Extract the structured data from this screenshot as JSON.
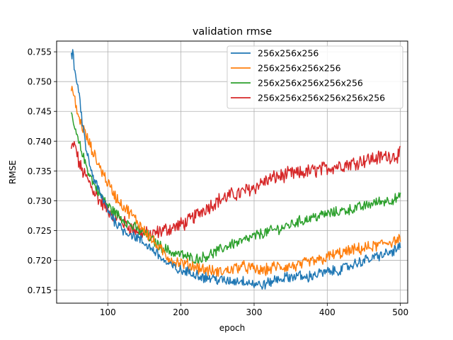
{
  "chart_data": {
    "type": "line",
    "title": "validation rmse",
    "xlabel": "epoch",
    "ylabel": "RMSE",
    "xlim": [
      30,
      510
    ],
    "ylim": [
      0.7128,
      0.7568
    ],
    "xticks": [
      100,
      200,
      300,
      400,
      500
    ],
    "yticks": [
      0.715,
      0.72,
      0.725,
      0.73,
      0.735,
      0.74,
      0.745,
      0.75,
      0.755
    ],
    "ytick_labels": [
      "0.715",
      "0.720",
      "0.725",
      "0.730",
      "0.735",
      "0.740",
      "0.745",
      "0.750",
      "0.755"
    ],
    "grid": true,
    "legend_position": "top-right",
    "noise": [
      0.0008,
      0.0009,
      0.0008,
      0.0011
    ],
    "series": [
      {
        "name": "256x256x256",
        "color": "#1f77b4",
        "x": [
          50,
          52,
          55,
          58,
          62,
          65,
          70,
          75,
          80,
          90,
          100,
          110,
          120,
          130,
          140,
          150,
          160,
          170,
          180,
          190,
          200,
          210,
          220,
          230,
          240,
          250,
          260,
          270,
          280,
          290,
          300,
          310,
          320,
          330,
          340,
          350,
          360,
          370,
          380,
          390,
          400,
          410,
          420,
          430,
          440,
          450,
          460,
          470,
          480,
          490,
          500
        ],
        "y": [
          0.7545,
          0.7545,
          0.752,
          0.749,
          0.747,
          0.743,
          0.739,
          0.736,
          0.734,
          0.731,
          0.7285,
          0.7265,
          0.7252,
          0.7245,
          0.7238,
          0.7228,
          0.722,
          0.7208,
          0.7195,
          0.7188,
          0.7182,
          0.718,
          0.7178,
          0.7172,
          0.717,
          0.7168,
          0.7165,
          0.7165,
          0.7166,
          0.7165,
          0.716,
          0.7158,
          0.7162,
          0.7168,
          0.717,
          0.7172,
          0.7175,
          0.717,
          0.7175,
          0.7178,
          0.718,
          0.7182,
          0.7185,
          0.719,
          0.7195,
          0.72,
          0.7202,
          0.7208,
          0.721,
          0.7215,
          0.7222
        ]
      },
      {
        "name": "256x256x256x256",
        "color": "#ff7f0e",
        "x": [
          50,
          53,
          57,
          60,
          65,
          70,
          75,
          80,
          90,
          100,
          110,
          120,
          130,
          140,
          150,
          160,
          170,
          180,
          190,
          200,
          210,
          220,
          230,
          240,
          250,
          260,
          270,
          280,
          290,
          300,
          310,
          320,
          330,
          340,
          350,
          360,
          370,
          380,
          390,
          400,
          410,
          420,
          430,
          440,
          450,
          460,
          470,
          480,
          490,
          500
        ],
        "y": [
          0.7495,
          0.7478,
          0.7455,
          0.744,
          0.7425,
          0.741,
          0.7395,
          0.738,
          0.7355,
          0.733,
          0.7308,
          0.7292,
          0.728,
          0.7265,
          0.7252,
          0.7235,
          0.722,
          0.7208,
          0.7198,
          0.7195,
          0.7192,
          0.719,
          0.7185,
          0.7182,
          0.718,
          0.7182,
          0.7185,
          0.719,
          0.7188,
          0.7185,
          0.7182,
          0.7185,
          0.719,
          0.7188,
          0.719,
          0.719,
          0.7195,
          0.7198,
          0.72,
          0.7205,
          0.721,
          0.7212,
          0.7215,
          0.7218,
          0.722,
          0.7222,
          0.7225,
          0.723,
          0.7232,
          0.7235
        ]
      },
      {
        "name": "256x256x256x256x256",
        "color": "#2ca02c",
        "x": [
          50,
          53,
          57,
          60,
          65,
          70,
          75,
          80,
          90,
          100,
          110,
          120,
          130,
          140,
          150,
          160,
          170,
          180,
          190,
          200,
          210,
          220,
          230,
          240,
          250,
          260,
          270,
          280,
          290,
          300,
          310,
          320,
          330,
          340,
          350,
          360,
          370,
          380,
          390,
          400,
          410,
          420,
          430,
          440,
          450,
          460,
          470,
          480,
          490,
          500
        ],
        "y": [
          0.7445,
          0.743,
          0.741,
          0.7398,
          0.738,
          0.736,
          0.7345,
          0.733,
          0.731,
          0.7292,
          0.728,
          0.727,
          0.726,
          0.7252,
          0.7245,
          0.7235,
          0.7225,
          0.7218,
          0.7212,
          0.721,
          0.7205,
          0.7202,
          0.7205,
          0.721,
          0.7215,
          0.7222,
          0.7228,
          0.723,
          0.7235,
          0.724,
          0.7245,
          0.7248,
          0.7252,
          0.7255,
          0.726,
          0.7265,
          0.7268,
          0.7272,
          0.7275,
          0.7278,
          0.728,
          0.7283,
          0.7285,
          0.7288,
          0.729,
          0.7295,
          0.7298,
          0.73,
          0.7302,
          0.7305
        ]
      },
      {
        "name": "256x256x256x256x256x256",
        "color": "#d62728",
        "x": [
          50,
          53,
          57,
          60,
          65,
          70,
          75,
          80,
          90,
          100,
          110,
          120,
          130,
          140,
          150,
          160,
          170,
          180,
          190,
          200,
          210,
          220,
          230,
          240,
          250,
          260,
          270,
          280,
          290,
          300,
          310,
          320,
          330,
          340,
          350,
          360,
          370,
          380,
          390,
          400,
          410,
          420,
          430,
          440,
          450,
          460,
          470,
          480,
          490,
          500
        ],
        "y": [
          0.7385,
          0.7395,
          0.7385,
          0.7365,
          0.735,
          0.734,
          0.733,
          0.7318,
          0.7298,
          0.7285,
          0.7275,
          0.7265,
          0.7255,
          0.725,
          0.7245,
          0.7242,
          0.7248,
          0.7252,
          0.7255,
          0.726,
          0.7265,
          0.7275,
          0.7285,
          0.7292,
          0.73,
          0.7305,
          0.731,
          0.7312,
          0.7318,
          0.7322,
          0.733,
          0.7335,
          0.734,
          0.7342,
          0.7345,
          0.7345,
          0.7348,
          0.735,
          0.7352,
          0.7355,
          0.7358,
          0.736,
          0.7362,
          0.7365,
          0.7368,
          0.737,
          0.7372,
          0.7375,
          0.7375,
          0.7378
        ]
      }
    ]
  }
}
